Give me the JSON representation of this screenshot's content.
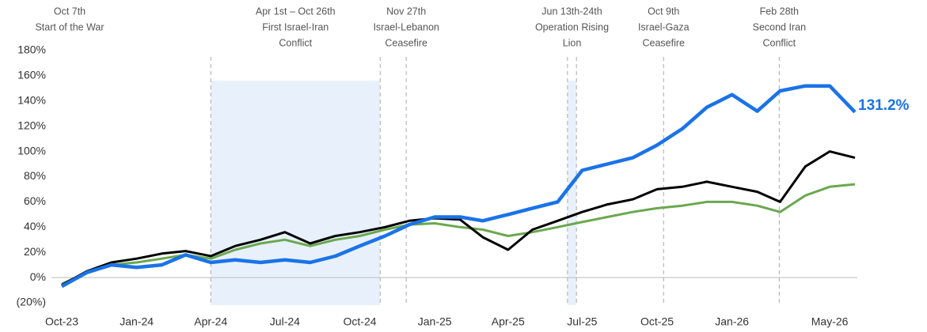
{
  "chart_data": {
    "type": "line",
    "x": [
      "2023-10",
      "2023-11",
      "2023-12",
      "2024-01",
      "2024-02",
      "2024-03",
      "2024-04",
      "2024-05",
      "2024-06",
      "2024-07",
      "2024-08",
      "2024-09",
      "2024-10",
      "2024-11",
      "2024-12",
      "2025-01",
      "2025-02",
      "2025-03",
      "2025-04",
      "2025-05",
      "2025-06",
      "2025-07",
      "2025-08",
      "2025-09",
      "2025-10",
      "2025-11",
      "2025-12",
      "2026-01",
      "2026-02",
      "2026-03",
      "2026-04",
      "2026-05",
      "2026-06"
    ],
    "xlim": [
      "2023-10",
      "2026-06"
    ],
    "xticks": [
      {
        "value": "2023-10",
        "label": "Oct-23"
      },
      {
        "value": "2024-01",
        "label": "Jan-24"
      },
      {
        "value": "2024-04",
        "label": "Apr-24"
      },
      {
        "value": "2024-07",
        "label": "Jul-24"
      },
      {
        "value": "2024-10",
        "label": "Oct-24"
      },
      {
        "value": "2025-01",
        "label": "Jan-25"
      },
      {
        "value": "2025-04",
        "label": "Apr-25"
      },
      {
        "value": "2025-07",
        "label": "Jul-25"
      },
      {
        "value": "2025-10",
        "label": "Oct-25"
      },
      {
        "value": "2026-01",
        "label": "Jan-26"
      },
      {
        "value": "2026-05",
        "label": "May-26"
      }
    ],
    "ylim": [
      -20,
      180
    ],
    "yticks": [
      {
        "value": -20,
        "label": "(20%)"
      },
      {
        "value": 0,
        "label": "0%"
      },
      {
        "value": 20,
        "label": "20%"
      },
      {
        "value": 40,
        "label": "40%"
      },
      {
        "value": 60,
        "label": "60%"
      },
      {
        "value": 80,
        "label": "80%"
      },
      {
        "value": 100,
        "label": "100%"
      },
      {
        "value": 120,
        "label": "120%"
      },
      {
        "value": 140,
        "label": "140%"
      },
      {
        "value": 160,
        "label": "160%"
      },
      {
        "value": 180,
        "label": "180%"
      }
    ],
    "series": [
      {
        "color": "#6aa84f",
        "width": 3,
        "values": [
          -5,
          4,
          10,
          12,
          15,
          18,
          15,
          22,
          27,
          30,
          25,
          30,
          33,
          38,
          42,
          43,
          40,
          38,
          33,
          36,
          40,
          44,
          48,
          52,
          55,
          57,
          60,
          60,
          57,
          52,
          65,
          72,
          74
        ]
      },
      {
        "color": "#000000",
        "width": 3,
        "values": [
          -6,
          5,
          12,
          15,
          19,
          21,
          17,
          25,
          30,
          36,
          27,
          33,
          36,
          40,
          45,
          47,
          46,
          32,
          22,
          38,
          45,
          52,
          58,
          62,
          70,
          72,
          76,
          72,
          68,
          60,
          88,
          100,
          95
        ]
      },
      {
        "color": "#1a73e8",
        "width": 4.5,
        "values": [
          -7,
          4,
          10,
          8,
          10,
          18,
          12,
          14,
          12,
          14,
          12,
          17,
          25,
          33,
          42,
          48,
          48,
          45,
          50,
          55,
          60,
          85,
          90,
          95,
          105,
          118,
          135,
          145,
          132,
          148,
          152,
          152,
          131.2
        ],
        "end_label": "131.2%"
      }
    ],
    "events": [
      {
        "start": "2023-10-07",
        "lines": [
          "Oct 7th",
          "Start of the War"
        ],
        "dashed": false
      },
      {
        "start": "2024-04-01",
        "end": "2024-10-26",
        "lines": [
          "Apr 1st – Oct 26th",
          "First Israel-Iran",
          "Conflict"
        ],
        "dashed": true,
        "shaded": true
      },
      {
        "start": "2024-11-27",
        "lines": [
          "Nov 27th",
          "Israel-Lebanon",
          "Ceasefire"
        ],
        "dashed": true
      },
      {
        "start": "2025-06-13",
        "end": "2025-06-24",
        "lines": [
          "Jun 13th-24th",
          "Operation Rising",
          "Lion"
        ],
        "dashed": true,
        "shaded": true
      },
      {
        "start": "2025-10-09",
        "lines": [
          "Oct 9th",
          "Israel-Gaza",
          "Ceasefire"
        ],
        "dashed": true
      },
      {
        "start": "2026-02-28",
        "lines": [
          "Feb 28th",
          "Second Iran",
          "Conflict"
        ],
        "dashed": true
      }
    ]
  }
}
